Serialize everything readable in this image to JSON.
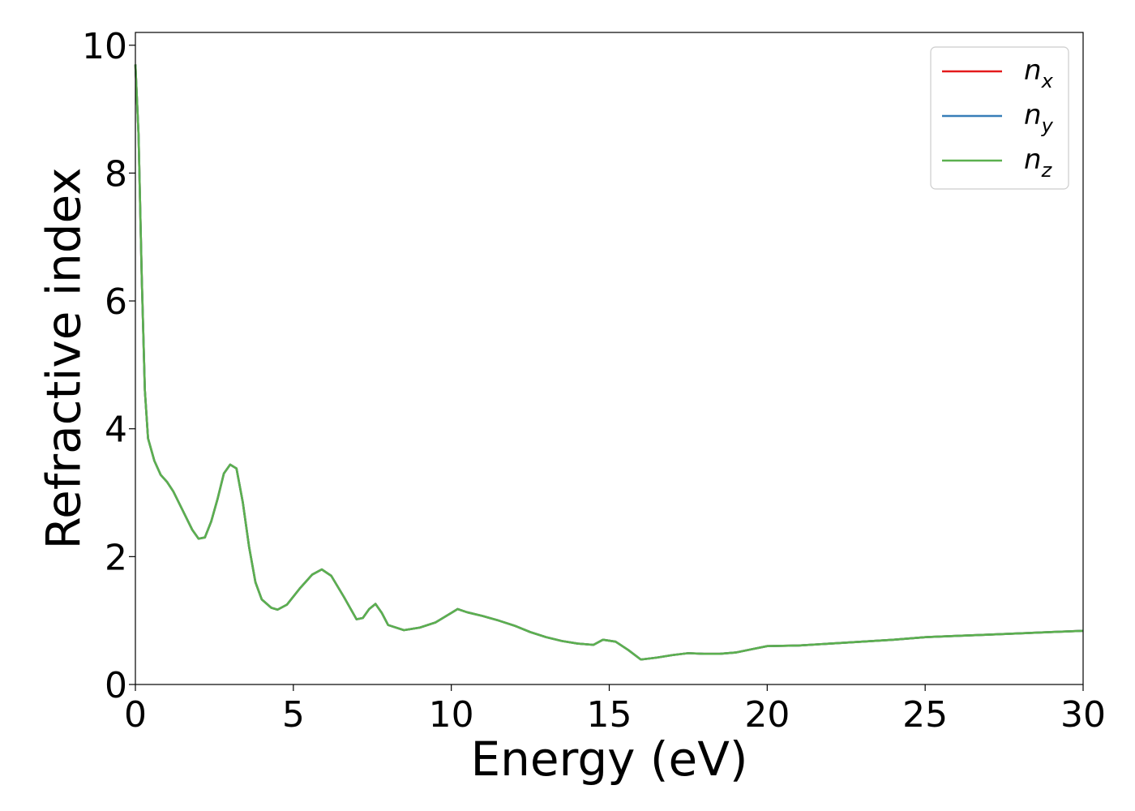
{
  "chart_data": {
    "type": "line",
    "title": "",
    "xlabel": "Energy (eV)",
    "ylabel": "Refractive index",
    "xlim": [
      0,
      30
    ],
    "ylim": [
      0,
      10.2
    ],
    "xticks": [
      0,
      5,
      10,
      15,
      20,
      25,
      30
    ],
    "yticks": [
      0,
      2,
      4,
      6,
      8,
      10
    ],
    "grid": false,
    "legend_position": "top-right",
    "series": [
      {
        "name": "n_x",
        "legend": {
          "base": "n",
          "sub": "x"
        },
        "color": "#e41a1c",
        "x": [
          0,
          0.1,
          0.2,
          0.3,
          0.4,
          0.6,
          0.8,
          1.0,
          1.2,
          1.5,
          1.8,
          2.0,
          2.2,
          2.4,
          2.6,
          2.8,
          3.0,
          3.2,
          3.4,
          3.6,
          3.8,
          4.0,
          4.3,
          4.5,
          4.8,
          5.2,
          5.6,
          5.9,
          6.2,
          6.6,
          7.0,
          7.2,
          7.4,
          7.6,
          7.8,
          8.0,
          8.5,
          9.0,
          9.5,
          10.0,
          10.2,
          10.5,
          11.0,
          11.5,
          12.0,
          12.5,
          13.0,
          13.5,
          14.0,
          14.5,
          14.8,
          15.2,
          15.6,
          16.0,
          16.5,
          17.0,
          17.5,
          18.0,
          18.5,
          19.0,
          19.5,
          20.0,
          21.0,
          22.0,
          23.0,
          24.0,
          25.0,
          26.0,
          27.0,
          28.0,
          29.0,
          30.0
        ],
        "y": [
          9.7,
          8.6,
          6.4,
          4.6,
          3.85,
          3.5,
          3.28,
          3.17,
          3.02,
          2.72,
          2.42,
          2.28,
          2.3,
          2.55,
          2.9,
          3.3,
          3.44,
          3.38,
          2.85,
          2.15,
          1.6,
          1.33,
          1.2,
          1.17,
          1.25,
          1.5,
          1.72,
          1.8,
          1.7,
          1.37,
          1.02,
          1.04,
          1.18,
          1.26,
          1.12,
          0.93,
          0.85,
          0.89,
          0.97,
          1.12,
          1.18,
          1.13,
          1.07,
          1.0,
          0.92,
          0.82,
          0.74,
          0.68,
          0.64,
          0.62,
          0.7,
          0.67,
          0.54,
          0.39,
          0.42,
          0.46,
          0.49,
          0.48,
          0.48,
          0.5,
          0.55,
          0.6,
          0.61,
          0.64,
          0.67,
          0.7,
          0.74,
          0.76,
          0.78,
          0.8,
          0.82,
          0.84
        ]
      },
      {
        "name": "n_y",
        "legend": {
          "base": "n",
          "sub": "y"
        },
        "color": "#377eb8",
        "x": [
          0,
          0.1,
          0.2,
          0.3,
          0.4,
          0.6,
          0.8,
          1.0,
          1.2,
          1.5,
          1.8,
          2.0,
          2.2,
          2.4,
          2.6,
          2.8,
          3.0,
          3.2,
          3.4,
          3.6,
          3.8,
          4.0,
          4.3,
          4.5,
          4.8,
          5.2,
          5.6,
          5.9,
          6.2,
          6.6,
          7.0,
          7.2,
          7.4,
          7.6,
          7.8,
          8.0,
          8.5,
          9.0,
          9.5,
          10.0,
          10.2,
          10.5,
          11.0,
          11.5,
          12.0,
          12.5,
          13.0,
          13.5,
          14.0,
          14.5,
          14.8,
          15.2,
          15.6,
          16.0,
          16.5,
          17.0,
          17.5,
          18.0,
          18.5,
          19.0,
          19.5,
          20.0,
          21.0,
          22.0,
          23.0,
          24.0,
          25.0,
          26.0,
          27.0,
          28.0,
          29.0,
          30.0
        ],
        "y": [
          9.7,
          8.6,
          6.4,
          4.6,
          3.85,
          3.5,
          3.28,
          3.17,
          3.02,
          2.72,
          2.42,
          2.28,
          2.3,
          2.55,
          2.9,
          3.3,
          3.44,
          3.38,
          2.85,
          2.15,
          1.6,
          1.33,
          1.2,
          1.17,
          1.25,
          1.5,
          1.72,
          1.8,
          1.7,
          1.37,
          1.02,
          1.04,
          1.18,
          1.26,
          1.12,
          0.93,
          0.85,
          0.89,
          0.97,
          1.12,
          1.18,
          1.13,
          1.07,
          1.0,
          0.92,
          0.82,
          0.74,
          0.68,
          0.64,
          0.62,
          0.7,
          0.67,
          0.54,
          0.39,
          0.42,
          0.46,
          0.49,
          0.48,
          0.48,
          0.5,
          0.55,
          0.6,
          0.61,
          0.64,
          0.67,
          0.7,
          0.74,
          0.76,
          0.78,
          0.8,
          0.82,
          0.84
        ]
      },
      {
        "name": "n_z",
        "legend": {
          "base": "n",
          "sub": "z"
        },
        "color": "#5bb04f",
        "x": [
          0,
          0.1,
          0.2,
          0.3,
          0.4,
          0.6,
          0.8,
          1.0,
          1.2,
          1.5,
          1.8,
          2.0,
          2.2,
          2.4,
          2.6,
          2.8,
          3.0,
          3.2,
          3.4,
          3.6,
          3.8,
          4.0,
          4.3,
          4.5,
          4.8,
          5.2,
          5.6,
          5.9,
          6.2,
          6.6,
          7.0,
          7.2,
          7.4,
          7.6,
          7.8,
          8.0,
          8.5,
          9.0,
          9.5,
          10.0,
          10.2,
          10.5,
          11.0,
          11.5,
          12.0,
          12.5,
          13.0,
          13.5,
          14.0,
          14.5,
          14.8,
          15.2,
          15.6,
          16.0,
          16.5,
          17.0,
          17.5,
          18.0,
          18.5,
          19.0,
          19.5,
          20.0,
          21.0,
          22.0,
          23.0,
          24.0,
          25.0,
          26.0,
          27.0,
          28.0,
          29.0,
          30.0
        ],
        "y": [
          9.7,
          8.6,
          6.4,
          4.6,
          3.85,
          3.5,
          3.28,
          3.17,
          3.02,
          2.72,
          2.42,
          2.28,
          2.3,
          2.55,
          2.9,
          3.3,
          3.44,
          3.38,
          2.85,
          2.15,
          1.6,
          1.33,
          1.2,
          1.17,
          1.25,
          1.5,
          1.72,
          1.8,
          1.7,
          1.37,
          1.02,
          1.04,
          1.18,
          1.26,
          1.12,
          0.93,
          0.85,
          0.89,
          0.97,
          1.12,
          1.18,
          1.13,
          1.07,
          1.0,
          0.92,
          0.82,
          0.74,
          0.68,
          0.64,
          0.62,
          0.7,
          0.67,
          0.54,
          0.39,
          0.42,
          0.46,
          0.49,
          0.48,
          0.48,
          0.5,
          0.55,
          0.6,
          0.61,
          0.64,
          0.67,
          0.7,
          0.74,
          0.76,
          0.78,
          0.8,
          0.82,
          0.84
        ]
      }
    ]
  }
}
